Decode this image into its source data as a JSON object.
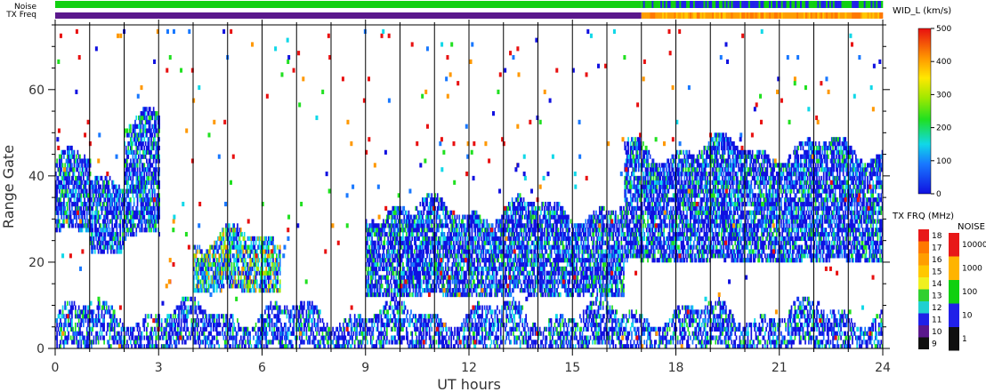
{
  "chart_data": {
    "type": "heatmap",
    "xlabel": "UT hours",
    "ylabel": "Range Gate",
    "xlim": [
      0,
      24
    ],
    "ylim": [
      0,
      75
    ],
    "x_ticks": [
      0,
      3,
      6,
      9,
      12,
      15,
      18,
      21,
      24
    ],
    "y_ticks": [
      0,
      20,
      40,
      60
    ],
    "hour_gridlines": true,
    "parameter": "WID_L (km/s)",
    "colorbar": {
      "title": "WID_L (km/s)",
      "min": 0,
      "max": 500,
      "ticks": [
        0,
        100,
        200,
        300,
        400,
        500
      ]
    },
    "header_bars": [
      {
        "label": "Noise",
        "segments": [
          {
            "from": 0,
            "to": 17,
            "level": "100"
          },
          {
            "from": 17,
            "to": 24,
            "level": "mixed 10-100"
          }
        ]
      },
      {
        "label": "TX Freq",
        "segments": [
          {
            "from": 0,
            "to": 17,
            "mhz": "10"
          },
          {
            "from": 17,
            "to": 24,
            "mhz": "16-17"
          }
        ]
      }
    ],
    "tx_freq_legend": {
      "title": "TX FRQ (MHz)",
      "labels": [
        "18",
        "17",
        "16",
        "15",
        "14",
        "13",
        "12",
        "11",
        "10",
        "9"
      ],
      "colors": [
        "#e81818",
        "#ff7800",
        "#ff9e00",
        "#ffc800",
        "#f0f020",
        "#30d030",
        "#20d0d0",
        "#2020e8",
        "#5a188c",
        "#101010"
      ]
    },
    "noise_legend": {
      "title": "NOISE",
      "labels": [
        "10000",
        "1000",
        "100",
        "10",
        "1"
      ],
      "colors": [
        "#e81818",
        "#ffb400",
        "#10d010",
        "#2020e8",
        "#101010"
      ]
    },
    "echo_regions": [
      {
        "from": 0.0,
        "to": 1.0,
        "gate_min": 27,
        "gate_max": 43,
        "dominant": "blue"
      },
      {
        "from": 1.0,
        "to": 2.0,
        "gate_min": 22,
        "gate_max": 40,
        "dominant": "blue"
      },
      {
        "from": 2.0,
        "to": 3.0,
        "gate_min": 26,
        "gate_max": 52,
        "dominant": "blue"
      },
      {
        "from": 4.0,
        "to": 6.5,
        "gate_min": 13,
        "gate_max": 25,
        "dominant": "cyan"
      },
      {
        "from": 9.0,
        "to": 16.5,
        "gate_min": 12,
        "gate_max": 32,
        "dominant": "blue"
      },
      {
        "from": 16.5,
        "to": 24.0,
        "gate_min": 20,
        "gate_max": 46,
        "dominant": "blue"
      },
      {
        "from": 0.0,
        "to": 24.0,
        "gate_min": 0,
        "gate_max": 8,
        "dominant": "blue"
      }
    ]
  }
}
